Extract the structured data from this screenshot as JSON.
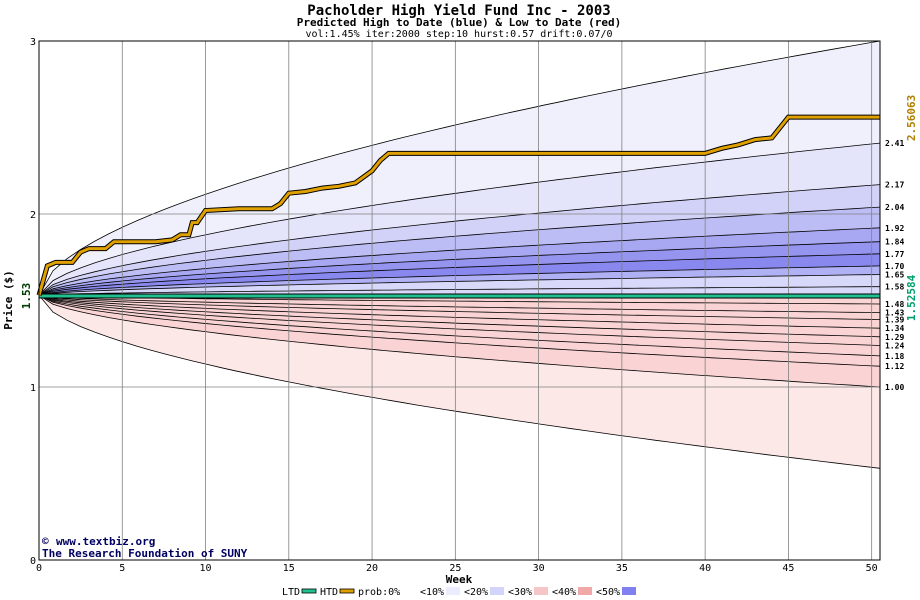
{
  "chart_data": {
    "type": "area",
    "title": "Pacholder High Yield Fund Inc - 2003",
    "subtitle": "Predicted High to Date (blue) &  Low to Date (red)",
    "params": "vol:1.45% iter:2000 step:10 hurst:0.57 drift:0.07/0",
    "xlabel": "Week",
    "ylabel": "Price ($)",
    "xlim": [
      0,
      50.5
    ],
    "ylim": [
      0,
      3
    ],
    "x_ticks": [
      "0",
      "5",
      "10",
      "15",
      "20",
      "25",
      "30",
      "35",
      "40",
      "45",
      "50"
    ],
    "y_ticks": [
      "0",
      "1",
      "2",
      "3"
    ],
    "start_price": 1.53,
    "start_label": "1.53",
    "htd_final_label": "2.56063",
    "ltd_final_label": "1.52584",
    "high_band_ends": [
      {
        "value": 2.41,
        "label": "2.41"
      },
      {
        "value": 2.17,
        "label": "2.17"
      },
      {
        "value": 2.04,
        "label": "2.04"
      },
      {
        "value": 1.92,
        "label": "1.92"
      },
      {
        "value": 1.84,
        "label": "1.84"
      },
      {
        "value": 1.77,
        "label": "1.77"
      },
      {
        "value": 1.7,
        "label": "1.70"
      },
      {
        "value": 1.65,
        "label": "1.65"
      },
      {
        "value": 1.58,
        "label": "1.58"
      }
    ],
    "low_band_ends": [
      {
        "value": 1.48,
        "label": "1.48"
      },
      {
        "value": 1.43,
        "label": "1.43"
      },
      {
        "value": 1.39,
        "label": "1.39"
      },
      {
        "value": 1.34,
        "label": "1.34"
      },
      {
        "value": 1.29,
        "label": "1.29"
      },
      {
        "value": 1.24,
        "label": "1.24"
      },
      {
        "value": 1.18,
        "label": "1.18"
      },
      {
        "value": 1.12,
        "label": "1.12"
      },
      {
        "value": 1.0,
        "label": "1.00"
      }
    ],
    "extreme_high_end": 3.0,
    "extreme_low_end": 0.53,
    "htd_series": {
      "name": "HTD",
      "x": [
        0,
        0.5,
        1.0,
        2.0,
        2.5,
        3.0,
        4.0,
        4.5,
        5.0,
        7.0,
        8.0,
        8.5,
        9.0,
        9.2,
        9.5,
        10.0,
        12.0,
        14.0,
        14.5,
        15.0,
        16.0,
        17.0,
        18.0,
        19.0,
        20.0,
        20.5,
        21.0,
        25.0,
        30.0,
        35.0,
        40.0,
        41.0,
        42.0,
        43.0,
        44.0,
        44.5,
        45.0,
        50.5
      ],
      "y": [
        1.53,
        1.7,
        1.72,
        1.72,
        1.78,
        1.8,
        1.8,
        1.84,
        1.84,
        1.84,
        1.85,
        1.88,
        1.88,
        1.95,
        1.95,
        2.02,
        2.03,
        2.03,
        2.06,
        2.12,
        2.13,
        2.15,
        2.16,
        2.18,
        2.25,
        2.31,
        2.35,
        2.35,
        2.35,
        2.35,
        2.35,
        2.38,
        2.4,
        2.43,
        2.44,
        2.5,
        2.56,
        2.56
      ]
    },
    "ltd_series": {
      "name": "LTD",
      "x": [
        0,
        50.5
      ],
      "y": [
        1.526,
        1.526
      ]
    },
    "legend": {
      "items": [
        {
          "label": "LTD",
          "color": "#20c090",
          "kind": "line"
        },
        {
          "label": "HTD",
          "color": "#e0a000",
          "kind": "line"
        },
        {
          "label": "prob:0%",
          "color": "#ffffff",
          "kind": "swatch"
        },
        {
          "label": "<10%",
          "color": "#ececff",
          "kind": "swatch"
        },
        {
          "label": "<20%",
          "color": "#d4d4fb",
          "kind": "swatch"
        },
        {
          "label": "<30%",
          "color": "#f6c6c6",
          "kind": "swatch"
        },
        {
          "label": "<40%",
          "color": "#f0a8a8",
          "kind": "swatch"
        },
        {
          "label": "<50%",
          "color": "#8080f0",
          "kind": "swatch"
        }
      ]
    },
    "grid": true,
    "colors": {
      "high_bands": [
        "#f0f0fc",
        "#e4e4fb",
        "#d2d2f8",
        "#bdbdf5",
        "#a8a8f2",
        "#9595f0",
        "#8888ee",
        "#b0b0f4",
        "#d8d8fa"
      ],
      "low_bands": [
        "#fde8e8",
        "#fcdcdc",
        "#f9caca",
        "#f7b6b6",
        "#f4a2a2",
        "#f29090",
        "#ef8484",
        "#f4a8a8",
        "#fad4d4"
      ],
      "htd": "#e0a000",
      "ltd": "#20c090",
      "start_label": "#004000",
      "htd_label": "#b08000",
      "ltd_label": "#00a070"
    }
  },
  "credits": {
    "copyright_symbol": "©",
    "site": "www.textbiz.org",
    "org": "The Research Foundation of SUNY"
  }
}
